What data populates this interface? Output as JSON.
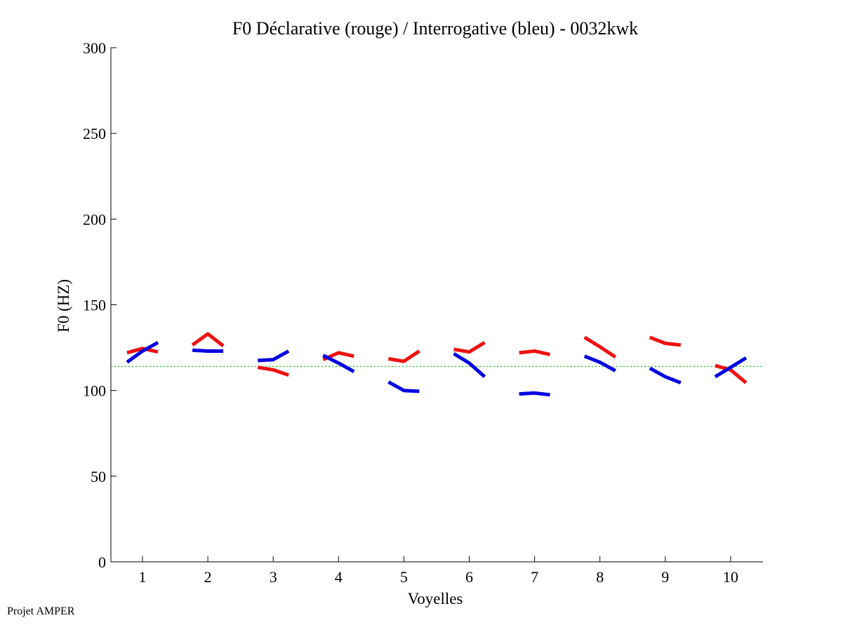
{
  "chart_data": {
    "type": "line",
    "title": "F0 Déclarative (rouge) / Interrogative (bleu) - 0032kwk",
    "xlabel": "Voyelles",
    "ylabel": "F0 (HZ)",
    "categories": [
      "1",
      "2",
      "3",
      "4",
      "5",
      "6",
      "7",
      "8",
      "9",
      "10"
    ],
    "ylim": [
      0,
      300
    ],
    "yticks": [
      "0",
      "50",
      "100",
      "150",
      "200",
      "250",
      "300"
    ],
    "reference_line": 114,
    "grid": false,
    "series": [
      {
        "name": "Déclarative",
        "color": "#ee1111",
        "segments": [
          [
            122,
            124.5,
            122.5
          ],
          [
            126.5,
            133,
            126
          ],
          [
            113.5,
            112,
            109
          ],
          [
            118,
            122,
            120
          ],
          [
            118.5,
            117,
            123
          ],
          [
            124,
            122.5,
            128
          ],
          [
            122,
            123,
            121
          ],
          [
            131,
            125.5,
            119.5
          ],
          [
            131,
            127.5,
            126.5
          ],
          [
            114.5,
            112,
            104.5
          ]
        ]
      },
      {
        "name": "Interrogative",
        "color": "#0000e0",
        "segments": [
          [
            116.5,
            123,
            128
          ],
          [
            123.5,
            123,
            123
          ],
          [
            117.5,
            118,
            123
          ],
          [
            120.5,
            116,
            111
          ],
          [
            105,
            100,
            99.5
          ],
          [
            121.5,
            116,
            108
          ],
          [
            98,
            98.5,
            97.5
          ],
          [
            120,
            116.5,
            111.5
          ],
          [
            113,
            108,
            104.5
          ],
          [
            108,
            113.5,
            119
          ]
        ]
      }
    ]
  },
  "footer": "Projet AMPER"
}
